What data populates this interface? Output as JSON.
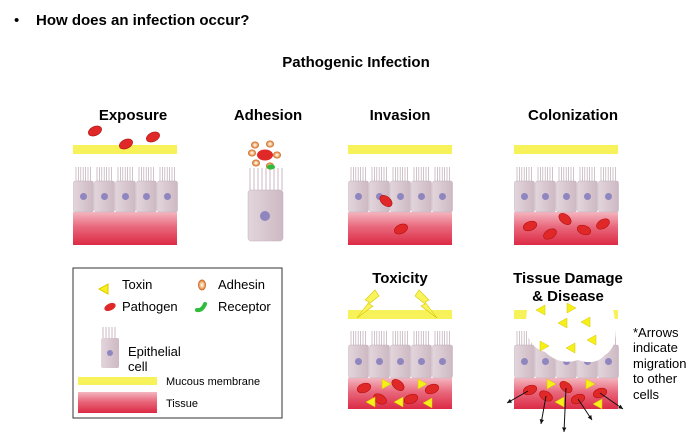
{
  "heading": {
    "bullet": "•",
    "text": "How does an infection occur?"
  },
  "diagram": {
    "title": "Pathogenic Infection",
    "stages": {
      "exposure": "Exposure",
      "adhesion": "Adhesion",
      "invasion": "Invasion",
      "colonization": "Colonization",
      "toxicity": "Toxicity",
      "damage_line1": "Tissue Damage",
      "damage_line2": "& Disease"
    },
    "note": [
      "*Arrows",
      "indicate",
      "migration",
      "to other",
      "cells"
    ],
    "legend": {
      "toxin": "Toxin",
      "adhesin": "Adhesin",
      "pathogen": "Pathogen",
      "receptor": "Receptor",
      "epithelial_line1": "Epithelial",
      "epithelial_line2": "cell",
      "mucous": "Mucous membrane",
      "tissue": "Tissue"
    },
    "colors": {
      "mucous": "#f7f25a",
      "pathogen": "#e02828",
      "toxin": "#f5ef1a",
      "cell": "#dccbd3",
      "nucleus": "#8f86c0",
      "tissue": "#e0435a",
      "receptor": "#2ebd3a",
      "adhesin": "#d46a1c"
    }
  }
}
